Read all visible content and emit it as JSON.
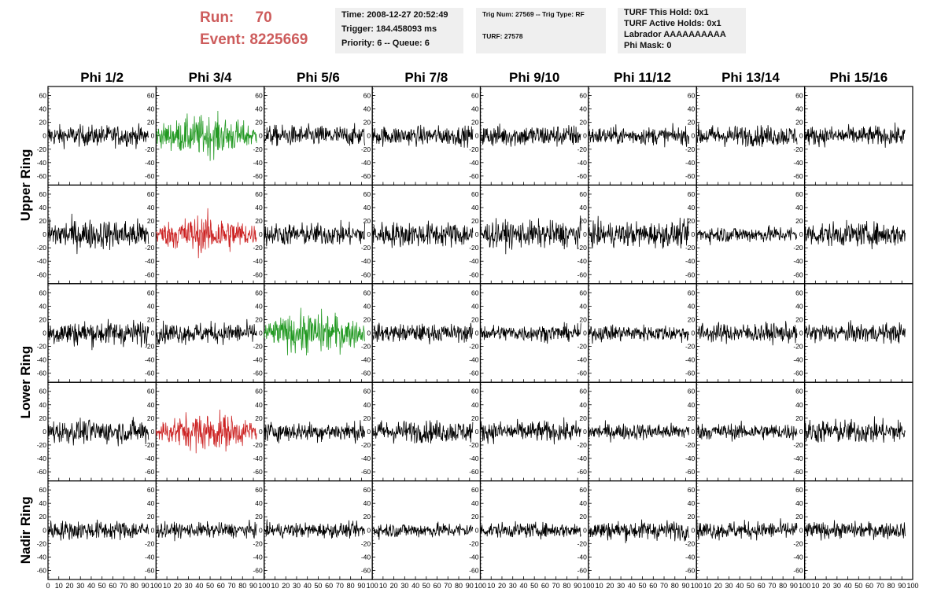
{
  "header": {
    "run_label": "Run:",
    "run_value": "70",
    "event_label": "Event:",
    "event_value": "8225669",
    "box1": [
      "Time: 2008-12-27 20:52:49",
      "Trigger: 184.458093 ms",
      "Priority: 6 -- Queue: 6"
    ],
    "box2": [
      "Trig Num: 27569 -- Trig Type: RF",
      "TURF: 27578"
    ],
    "box3": [
      "TURF This Hold: 0x1",
      "TURF Active Holds: 0x1",
      "Labrador AAAAAAAAAA",
      "Phi Mask: 0"
    ]
  },
  "colors": {
    "normal": "#000000",
    "green": "#229922",
    "red": "#cc2222",
    "accent_text": "#cd5c5c",
    "box_bg": "#efefef"
  },
  "chart_data": {
    "type": "line",
    "columns": [
      "Phi 1/2",
      "Phi 3/4",
      "Phi 5/6",
      "Phi 7/8",
      "Phi 9/10",
      "Phi 11/12",
      "Phi 13/14",
      "Phi 15/16"
    ],
    "row_groups": [
      {
        "label": "Upper Ring",
        "rows": [
          0,
          1
        ]
      },
      {
        "label": "Lower Ring",
        "rows": [
          2,
          3
        ]
      },
      {
        "label": "Nadir Ring",
        "rows": [
          4
        ]
      }
    ],
    "ylim": [
      -70,
      70
    ],
    "y_ticks": [
      -60,
      -40,
      -20,
      0,
      20,
      40,
      60
    ],
    "xlim": [
      0,
      100
    ],
    "x_ticks": [
      0,
      10,
      20,
      30,
      40,
      50,
      60,
      70,
      80,
      90,
      100
    ],
    "trace_x_range": [
      0,
      93
    ],
    "grid": false,
    "highlighted_panels": [
      {
        "row": 0,
        "col": 1,
        "color": "green"
      },
      {
        "row": 1,
        "col": 1,
        "color": "red"
      },
      {
        "row": 2,
        "col": 2,
        "color": "green"
      },
      {
        "row": 3,
        "col": 1,
        "color": "red"
      }
    ],
    "trace_amplitude_grid": [
      [
        14,
        23,
        14,
        13,
        15,
        12,
        14,
        13
      ],
      [
        20,
        22,
        15,
        17,
        18,
        17,
        11,
        16
      ],
      [
        17,
        14,
        24,
        12,
        11,
        11,
        13,
        13
      ],
      [
        16,
        22,
        13,
        15,
        14,
        11,
        11,
        16
      ],
      [
        13,
        10,
        10,
        10,
        10,
        13,
        12,
        11
      ]
    ]
  }
}
